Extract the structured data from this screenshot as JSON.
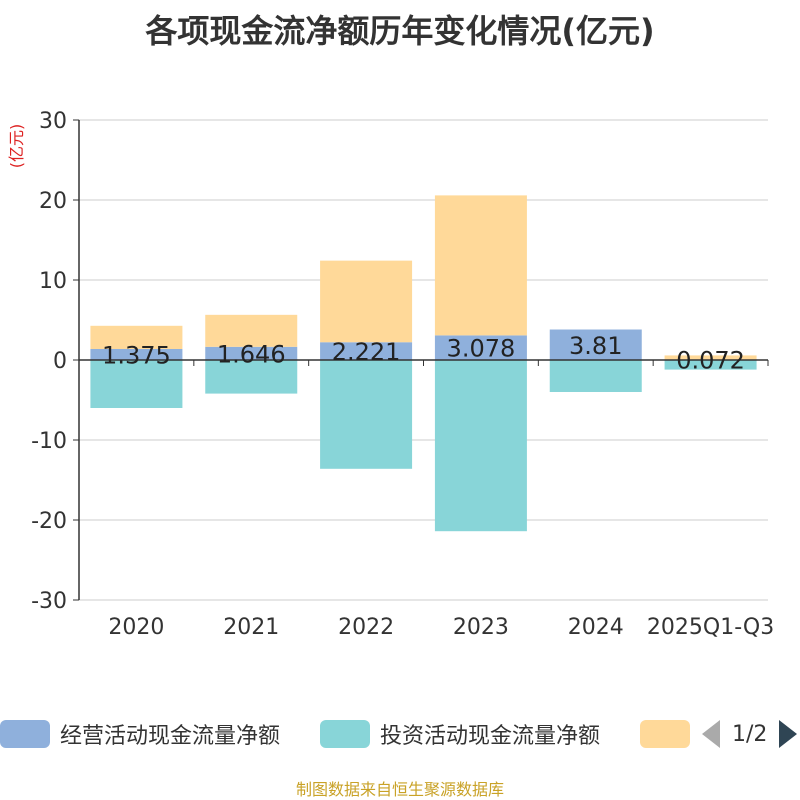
{
  "chart_data": {
    "type": "bar",
    "title": "各项现金流净额历年变化情况(亿元)",
    "ylabel": "(亿元)",
    "ylim": [
      -30,
      30
    ],
    "yticks": [
      30,
      20,
      10,
      0,
      -10,
      -20,
      -30
    ],
    "categories": [
      "2020",
      "2021",
      "2022",
      "2023",
      "2024",
      "2025Q1-Q3"
    ],
    "series": [
      {
        "name": "经营活动现金流量净额",
        "color": "#8fb0dc",
        "values": [
          1.375,
          1.646,
          2.221,
          3.078,
          3.81,
          0.072
        ],
        "labels": [
          "1.375",
          "1.646",
          "2.221",
          "3.078",
          "3.81",
          "0.072"
        ]
      },
      {
        "name": "投资活动现金流量净额",
        "color": "#88d5d8",
        "values": [
          -6.0,
          -4.2,
          -13.6,
          -21.4,
          -4.0,
          -1.2
        ]
      },
      {
        "name": "",
        "color": "#ffd999",
        "values": [
          2.9,
          4.0,
          10.2,
          17.5,
          0.0,
          0.5
        ]
      }
    ]
  },
  "legend": {
    "page_text": "1/2"
  },
  "footer": "制图数据来自恒生聚源数据库"
}
